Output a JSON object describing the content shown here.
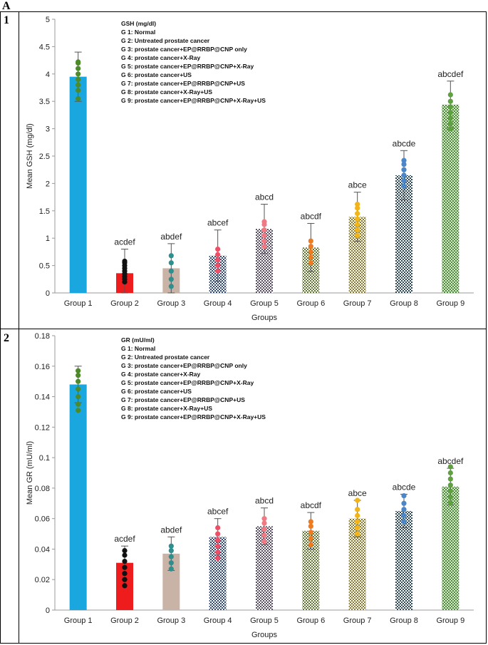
{
  "figure": {
    "panel_label": "A",
    "row_labels": [
      "1",
      "2"
    ]
  },
  "chart_data": [
    {
      "type": "bar",
      "ylabel": "Mean GSH (mg/dl)",
      "xlabel": "Groups",
      "ylim": [
        0,
        5
      ],
      "yticks": [
        "0",
        "0.5",
        "1",
        "1.5",
        "2",
        "2.5",
        "3",
        "3.5",
        "4",
        "4.5",
        "5"
      ],
      "ytick_values": [
        0,
        0.5,
        1,
        1.5,
        2,
        2.5,
        3,
        3.5,
        4,
        4.5,
        5
      ],
      "categories": [
        "Group 1",
        "Group 2",
        "Group 3",
        "Group 4",
        "Group 5",
        "Group 6",
        "Group 7",
        "Group 8",
        "Group 9"
      ],
      "values": [
        3.95,
        0.36,
        0.45,
        0.68,
        1.17,
        0.83,
        1.39,
        2.15,
        3.44
      ],
      "error": [
        0.45,
        0.44,
        0.45,
        0.47,
        0.45,
        0.44,
        0.45,
        0.45,
        0.43
      ],
      "significance": [
        "",
        "acdef",
        "abdef",
        "abcef",
        "abcd",
        "abcdf",
        "abce",
        "abcde",
        "abcdef"
      ],
      "points": [
        [
          3.55,
          3.7,
          3.8,
          3.9,
          4.0,
          4.1,
          4.2,
          4.22
        ],
        [
          0.2,
          0.25,
          0.3,
          0.35,
          0.4,
          0.45,
          0.5,
          0.55,
          0.58
        ],
        [
          0.12,
          0.25,
          0.4,
          0.55,
          0.68
        ],
        [
          0.4,
          0.5,
          0.6,
          0.7,
          0.8
        ],
        [
          0.85,
          0.95,
          1.05,
          1.15,
          1.25,
          1.3
        ],
        [
          0.55,
          0.65,
          0.75,
          0.85,
          0.95
        ],
        [
          1.05,
          1.15,
          1.25,
          1.35,
          1.45,
          1.55,
          1.62
        ],
        [
          1.95,
          2.05,
          2.15,
          2.25,
          2.35,
          2.42
        ],
        [
          3.0,
          3.1,
          3.2,
          3.3,
          3.4,
          3.5,
          3.62
        ]
      ],
      "legend_title": "GSH (mg/dl)",
      "legend": [
        "G 1: Normal",
        "G 2: Untreated prostate cancer",
        "G 3: prostate cancer+EP@RRBP@CNP only",
        "G 4: prostate cancer+X-Ray",
        "G 5: prostate cancer+EP@RRBP@CNP+X-Ray",
        "G 6: prostate cancer+US",
        "G 7: prostate cancer+EP@RRBP@CNP+US",
        "G 8: prostate cancer+X-Ray+US",
        "G 9: prostate cancer+EP@RRBP@CNP+X-Ray+US"
      ]
    },
    {
      "type": "bar",
      "ylabel": "Mean GR (mU/ml)",
      "xlabel": "Groups",
      "ylim": [
        0,
        0.18
      ],
      "yticks": [
        "0",
        "0.02",
        "0.04",
        "0.06",
        "0.08",
        "0.1",
        "0.12",
        "0.14",
        "0.16",
        "0.18"
      ],
      "ytick_values": [
        0,
        0.02,
        0.04,
        0.06,
        0.08,
        0.1,
        0.12,
        0.14,
        0.16,
        0.18
      ],
      "categories": [
        "Group 1",
        "Group 2",
        "Group 3",
        "Group 4",
        "Group 5",
        "Group 6",
        "Group 7",
        "Group 8",
        "Group 9"
      ],
      "values": [
        0.148,
        0.031,
        0.037,
        0.048,
        0.055,
        0.052,
        0.06,
        0.065,
        0.081
      ],
      "error": [
        0.012,
        0.011,
        0.011,
        0.012,
        0.012,
        0.012,
        0.012,
        0.011,
        0.012
      ],
      "significance": [
        "",
        "acdef",
        "abdef",
        "abcef",
        "abcd",
        "abcdf",
        "abce",
        "abcde",
        "abcdef"
      ],
      "points": [
        [
          0.131,
          0.135,
          0.14,
          0.145,
          0.15,
          0.154,
          0.157
        ],
        [
          0.016,
          0.02,
          0.024,
          0.028,
          0.032,
          0.036,
          0.039
        ],
        [
          0.027,
          0.031,
          0.035,
          0.039,
          0.042
        ],
        [
          0.034,
          0.038,
          0.042,
          0.046,
          0.05,
          0.054
        ],
        [
          0.045,
          0.049,
          0.053,
          0.057,
          0.06
        ],
        [
          0.043,
          0.047,
          0.051,
          0.055,
          0.058
        ],
        [
          0.05,
          0.054,
          0.058,
          0.062,
          0.066,
          0.072
        ],
        [
          0.058,
          0.062,
          0.066,
          0.07,
          0.075
        ],
        [
          0.07,
          0.074,
          0.078,
          0.082,
          0.086,
          0.09,
          0.094
        ]
      ],
      "legend_title": "GR (mU/ml)",
      "legend": [
        "G 1: Normal",
        "G 2: Untreated prostate cancer",
        "G 3: prostate cancer+EP@RRBP@CNP only",
        "G 4: prostate cancer+X-Ray",
        "G 5: prostate cancer+EP@RRBP@CNP+X-Ray",
        "G 6: prostate cancer+US",
        "G 7: prostate cancer+EP@RRBP@CNP+US",
        "G 8: prostate cancer+X-Ray+US",
        "G 9: prostate cancer+EP@RRBP@CNP+X-Ray+US"
      ]
    }
  ],
  "styles": {
    "bar_fills": [
      "#1aa7e0",
      "#ee1c1c",
      "#c9b2a6",
      "#2e4a7a",
      "#5a4e66",
      "#5f7a2e",
      "#8a7a2a",
      "#2a4a5a",
      "#4f8a3a"
    ],
    "pattern_light": [
      "",
      "",
      "",
      "#ffffff",
      "#ffffff",
      "#ffffff",
      "#ffffff",
      "#ffffff",
      "#d8ecd0"
    ],
    "point_colors": [
      "#4d8a2a",
      "#111111",
      "#2f8f8f",
      "#ee4f66",
      "#f07a84",
      "#ee7a22",
      "#f2b418",
      "#4a86c8",
      "#5fa040"
    ],
    "error_color": "#555555",
    "axis_color": "#999999",
    "text_color": "#222222",
    "sig_color": "#222222"
  }
}
